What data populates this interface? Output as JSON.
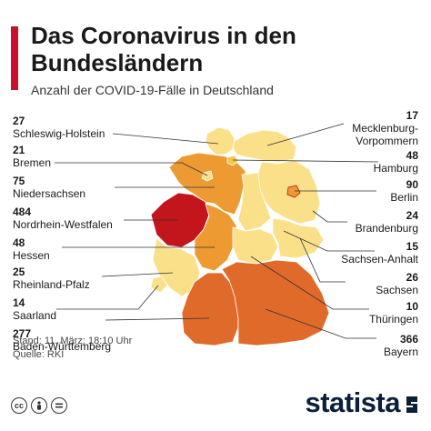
{
  "title": "Das Coronavirus in den Bundesländern",
  "subtitle": "Anzahl der COVID-19-Fälle in Deutschland",
  "colors": {
    "accent": "#c8102e",
    "scale": [
      "#fbe08a",
      "#f6c644",
      "#ee9a33",
      "#e06a2a",
      "#c3151c"
    ]
  },
  "states": [
    {
      "name": "Schleswig-Holstein",
      "cases": "27"
    },
    {
      "name": "Bremen",
      "cases": "21"
    },
    {
      "name": "Niedersachsen",
      "cases": "75"
    },
    {
      "name": "Nordrhein-Westfalen",
      "cases": "484"
    },
    {
      "name": "Hessen",
      "cases": "48"
    },
    {
      "name": "Rheinland-Pfalz",
      "cases": "25"
    },
    {
      "name": "Saarland",
      "cases": "14"
    },
    {
      "name": "Baden-Württemberg",
      "cases": "277"
    },
    {
      "name": "Mecklenburg-Vorpommern",
      "cases": "17"
    },
    {
      "name": "Hamburg",
      "cases": "48"
    },
    {
      "name": "Berlin",
      "cases": "90"
    },
    {
      "name": "Brandenburg",
      "cases": "24"
    },
    {
      "name": "Sachsen-Anhalt",
      "cases": "15"
    },
    {
      "name": "Sachsen",
      "cases": "26"
    },
    {
      "name": "Thüringen",
      "cases": "10"
    },
    {
      "name": "Bayern",
      "cases": "366"
    }
  ],
  "labels": {
    "mv_line1": "Mecklenburg-",
    "mv_line2": "Vorpommern"
  },
  "footer": {
    "stand": "Stand: 11. März; 18:10 Uhr",
    "quelle": "Quelle: RKI",
    "brand": "statista"
  },
  "icons": [
    "cc-icon",
    "by-icon",
    "nd-icon"
  ]
}
